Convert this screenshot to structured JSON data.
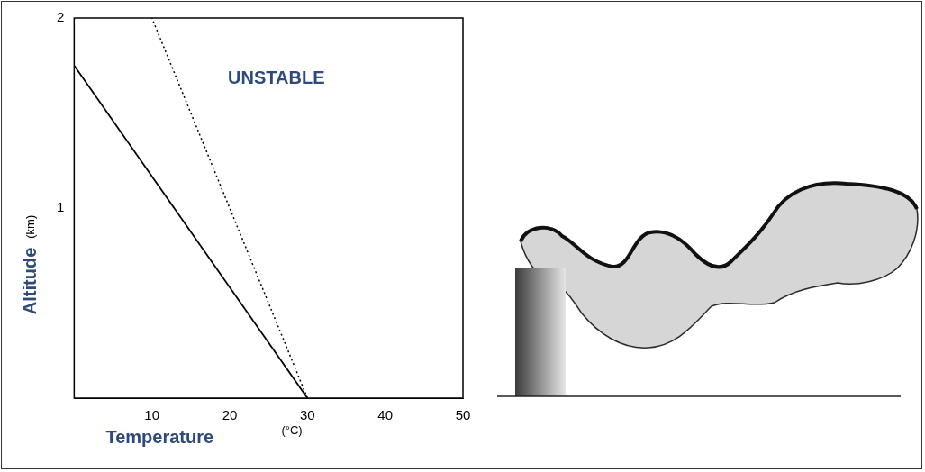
{
  "chart_data": {
    "type": "line",
    "xlabel": "Temperature",
    "xlabel_unit": "(°C)",
    "ylabel": "Altitude",
    "ylabel_unit": "(km)",
    "annotation": "UNSTABLE",
    "series": [
      {
        "color": "#000000",
        "line_style": "solid",
        "x": [
          30,
          0
        ],
        "values": [
          0,
          1.75
        ]
      },
      {
        "color": "#000000",
        "line_style": "dotted",
        "x": [
          30,
          10
        ],
        "values": [
          0,
          2
        ]
      }
    ],
    "xlim": [
      0,
      50
    ],
    "xticks": [
      10,
      20,
      30,
      40,
      50
    ],
    "ylim": [
      0,
      2
    ],
    "yticks": [
      1,
      2
    ],
    "grid": false
  }
}
